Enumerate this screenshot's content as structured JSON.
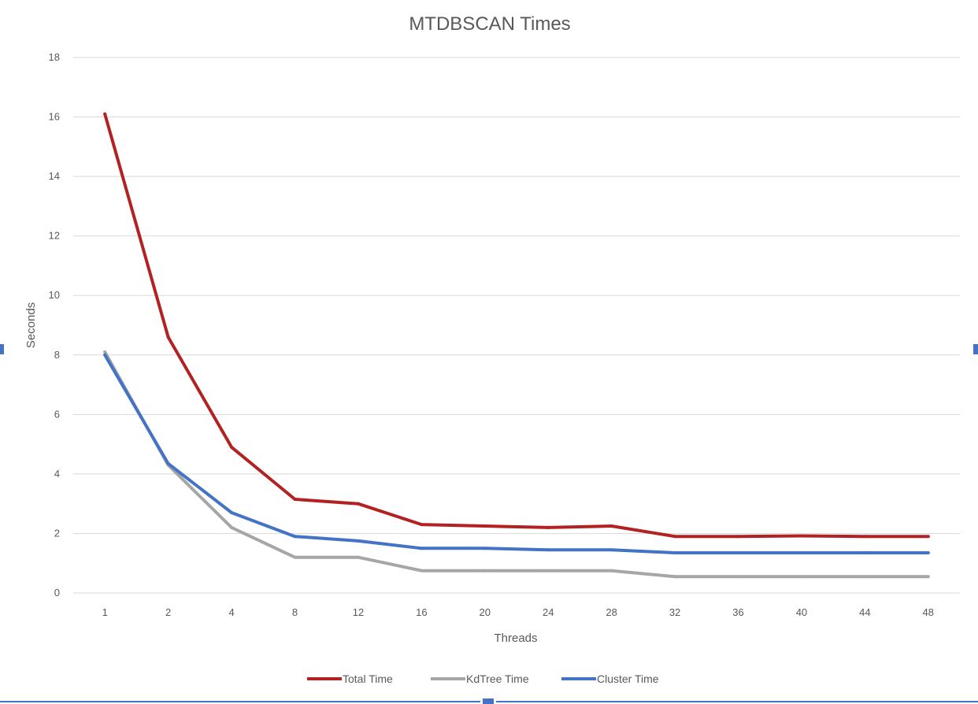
{
  "chart_data": {
    "type": "line",
    "title": "MTDBSCAN Times",
    "xlabel": "Threads",
    "ylabel": "Seconds",
    "categories": [
      "1",
      "2",
      "4",
      "8",
      "12",
      "16",
      "20",
      "24",
      "28",
      "32",
      "36",
      "40",
      "44",
      "48"
    ],
    "ylim": [
      0,
      18
    ],
    "yticks": [
      "0",
      "2",
      "4",
      "6",
      "8",
      "10",
      "12",
      "14",
      "16",
      "18"
    ],
    "grid": true,
    "legend_position": "bottom",
    "series": [
      {
        "name": "Total Time",
        "color": "#b22222",
        "values": [
          16.1,
          8.6,
          4.9,
          3.15,
          3.0,
          2.3,
          2.25,
          2.2,
          2.25,
          1.9,
          1.9,
          1.92,
          1.9,
          1.9
        ]
      },
      {
        "name": "KdTree Time",
        "color": "#a6a6a6",
        "values": [
          8.1,
          4.3,
          2.2,
          1.2,
          1.2,
          0.75,
          0.75,
          0.75,
          0.75,
          0.55,
          0.55,
          0.55,
          0.55,
          0.55
        ]
      },
      {
        "name": "Cluster Time",
        "color": "#4472c4",
        "values": [
          8.0,
          4.35,
          2.7,
          1.9,
          1.75,
          1.5,
          1.5,
          1.45,
          1.45,
          1.35,
          1.35,
          1.35,
          1.35,
          1.35
        ]
      }
    ]
  }
}
